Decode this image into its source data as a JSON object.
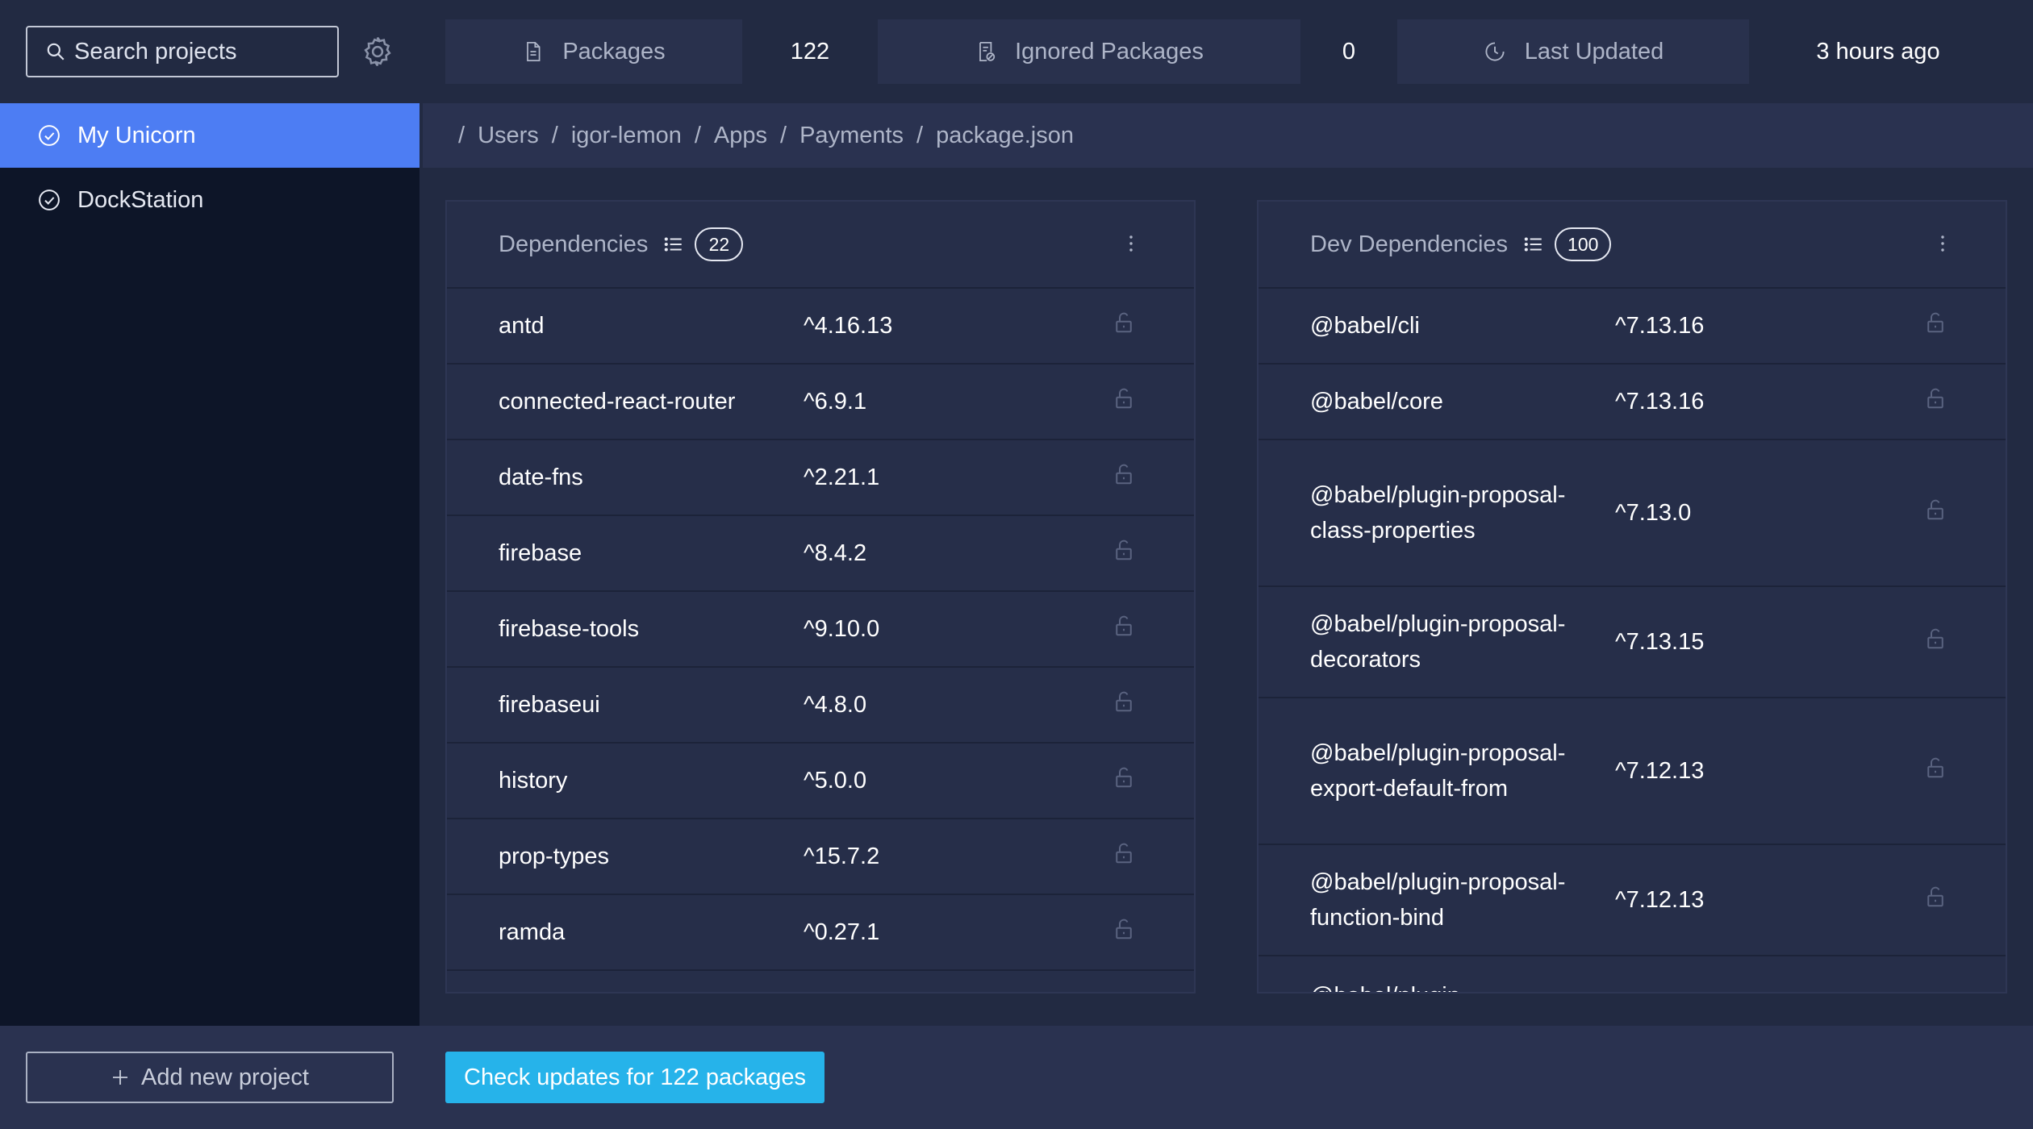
{
  "sidebar": {
    "search_placeholder": "Search projects",
    "projects": [
      {
        "label": "My Unicorn",
        "active": true
      },
      {
        "label": "DockStation",
        "active": false
      }
    ],
    "add_project_label": "Add new project"
  },
  "stats": {
    "packages_label": "Packages",
    "packages_value": "122",
    "ignored_label": "Ignored Packages",
    "ignored_value": "0",
    "updated_label": "Last Updated",
    "updated_value": "3 hours ago"
  },
  "breadcrumb": [
    "Users",
    "igor-lemon",
    "Apps",
    "Payments",
    "package.json"
  ],
  "dependencies": {
    "title": "Dependencies",
    "count": "22",
    "rows": [
      {
        "name": "antd",
        "version": "^4.16.13"
      },
      {
        "name": "connected-react-router",
        "version": "^6.9.1"
      },
      {
        "name": "date-fns",
        "version": "^2.21.1"
      },
      {
        "name": "firebase",
        "version": "^8.4.2"
      },
      {
        "name": "firebase-tools",
        "version": "^9.10.0"
      },
      {
        "name": "firebaseui",
        "version": "^4.8.0"
      },
      {
        "name": "history",
        "version": "^5.0.0"
      },
      {
        "name": "prop-types",
        "version": "^15.7.2"
      },
      {
        "name": "ramda",
        "version": "^0.27.1"
      }
    ]
  },
  "dev_dependencies": {
    "title": "Dev Dependencies",
    "count": "100",
    "rows": [
      {
        "name": "@babel/cli",
        "version": "^7.13.16"
      },
      {
        "name": "@babel/core",
        "version": "^7.13.16"
      },
      {
        "name": "@babel/plugin-proposal-class-properties",
        "version": "^7.13.0"
      },
      {
        "name": "@babel/plugin-proposal-decorators",
        "version": "^7.13.15"
      },
      {
        "name": "@babel/plugin-proposal-export-default-from",
        "version": "^7.12.13"
      },
      {
        "name": "@babel/plugin-proposal-function-bind",
        "version": "^7.12.13"
      },
      {
        "name": "@babel/plugin-",
        "version": ""
      }
    ]
  },
  "footer": {
    "check_updates_label": "Check updates for 122 packages"
  },
  "icons": {
    "search": "search-icon",
    "settings": "gear-icon",
    "project_status": "check-circle-icon",
    "packages": "file-icon",
    "ignored": "file-ignored-icon",
    "updated": "clock-icon",
    "list": "list-icon",
    "menu": "kebab-icon",
    "lock": "unlock-icon",
    "add": "plus-icon"
  },
  "colors": {
    "accent": "#4d7df3",
    "cta": "#26b3ea",
    "sidebar_bg": "#0d1528",
    "main_bg": "#222a42"
  }
}
